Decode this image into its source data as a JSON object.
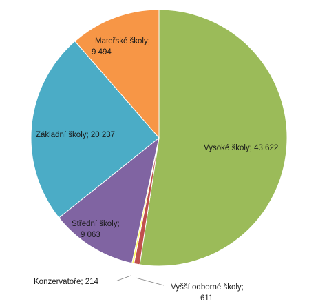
{
  "chart_data": {
    "type": "pie",
    "slices": [
      {
        "label": "Vysoké školy",
        "value": 43622,
        "value_text": "43 622",
        "color": "#9bbb59"
      },
      {
        "label": "Vyšší odborné školy",
        "value": 611,
        "value_text": "611",
        "color": "#c0504d"
      },
      {
        "label": "Konzervatoře",
        "value": 214,
        "value_text": "214",
        "color": "#ffff66"
      },
      {
        "label": "Střední školy",
        "value": 9063,
        "value_text": "9 063",
        "color": "#8064a2"
      },
      {
        "label": "Základní školy",
        "value": 20237,
        "value_text": "20 237",
        "color": "#4bacc6"
      },
      {
        "label": "Mateřské školy",
        "value": 9494,
        "value_text": "9 494",
        "color": "#f79646"
      }
    ],
    "label_texts": {
      "vysoke": "Vysoké školy; 43 622",
      "vyssi_line1": "Vyšší odborné školy;",
      "vyssi_line2": "611",
      "konzervatore": "Konzervatoře; 214",
      "stredni_line1": "Střední školy;",
      "stredni_line2": "9 063",
      "zakladni": "Základní školy; 20 237",
      "materske_line1": "Mateřské školy;",
      "materske_line2": "9 494"
    }
  }
}
